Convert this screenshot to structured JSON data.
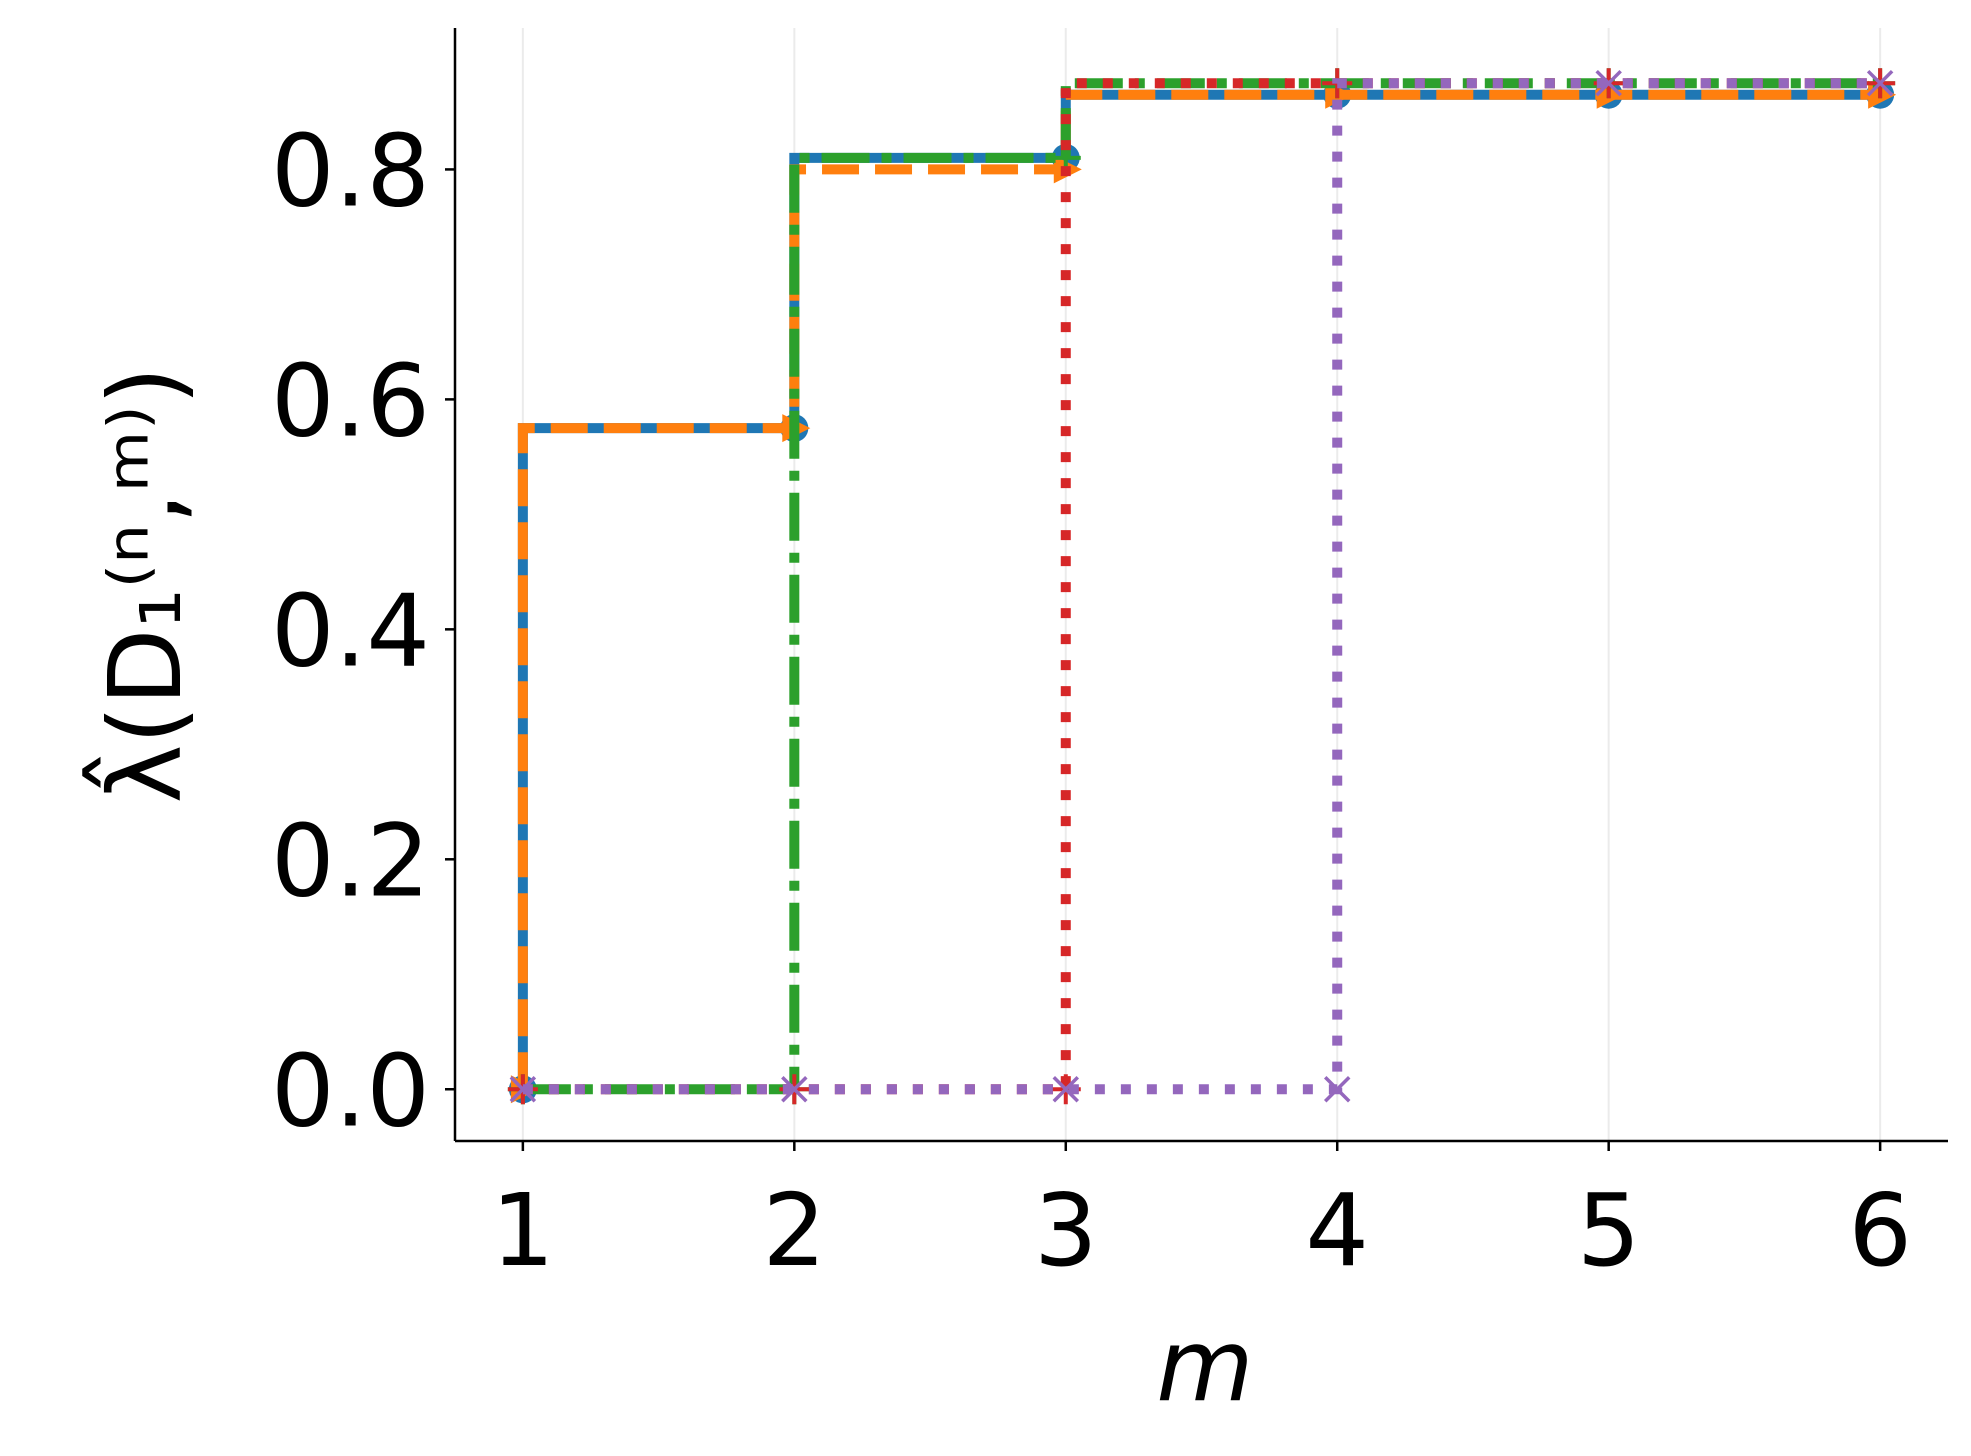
{
  "chart_data": {
    "type": "step",
    "xlabel": "m",
    "ylabel": "λ̂(D₁⁽ⁿ,ᵐ⁾)",
    "x": [
      1,
      2,
      3,
      4,
      5,
      6
    ],
    "xlim": [
      0.75,
      6.25
    ],
    "xticks": [
      1,
      2,
      3,
      4,
      5,
      6
    ],
    "ylim": [
      -0.045,
      0.923
    ],
    "yticks": [
      0.0,
      0.2,
      0.4,
      0.6,
      0.8
    ],
    "grid": "x",
    "series": [
      {
        "color": "#1f77b4",
        "linestyle": "solid",
        "marker": "circle",
        "values": [
          0,
          0.575,
          0.81,
          0.865,
          0.865,
          0.865
        ]
      },
      {
        "color": "#ff7f0e",
        "linestyle": "dashed",
        "marker": "triangle-right",
        "values": [
          0,
          0.575,
          0.8,
          0.865,
          0.865,
          0.865
        ]
      },
      {
        "color": "#2ca02c",
        "linestyle": "dashdot",
        "marker": "plus",
        "values": [
          0,
          0,
          0.81,
          0.875,
          0.875,
          0.875
        ]
      },
      {
        "color": "#d62728",
        "linestyle": "dotted",
        "marker": "plus",
        "values": [
          0,
          0,
          0,
          0.875,
          0.875,
          0.875
        ]
      },
      {
        "color": "#9467bd",
        "linestyle": "dotted",
        "marker": "x",
        "values": [
          0,
          0,
          0,
          0,
          0.875,
          0.875
        ]
      }
    ]
  }
}
